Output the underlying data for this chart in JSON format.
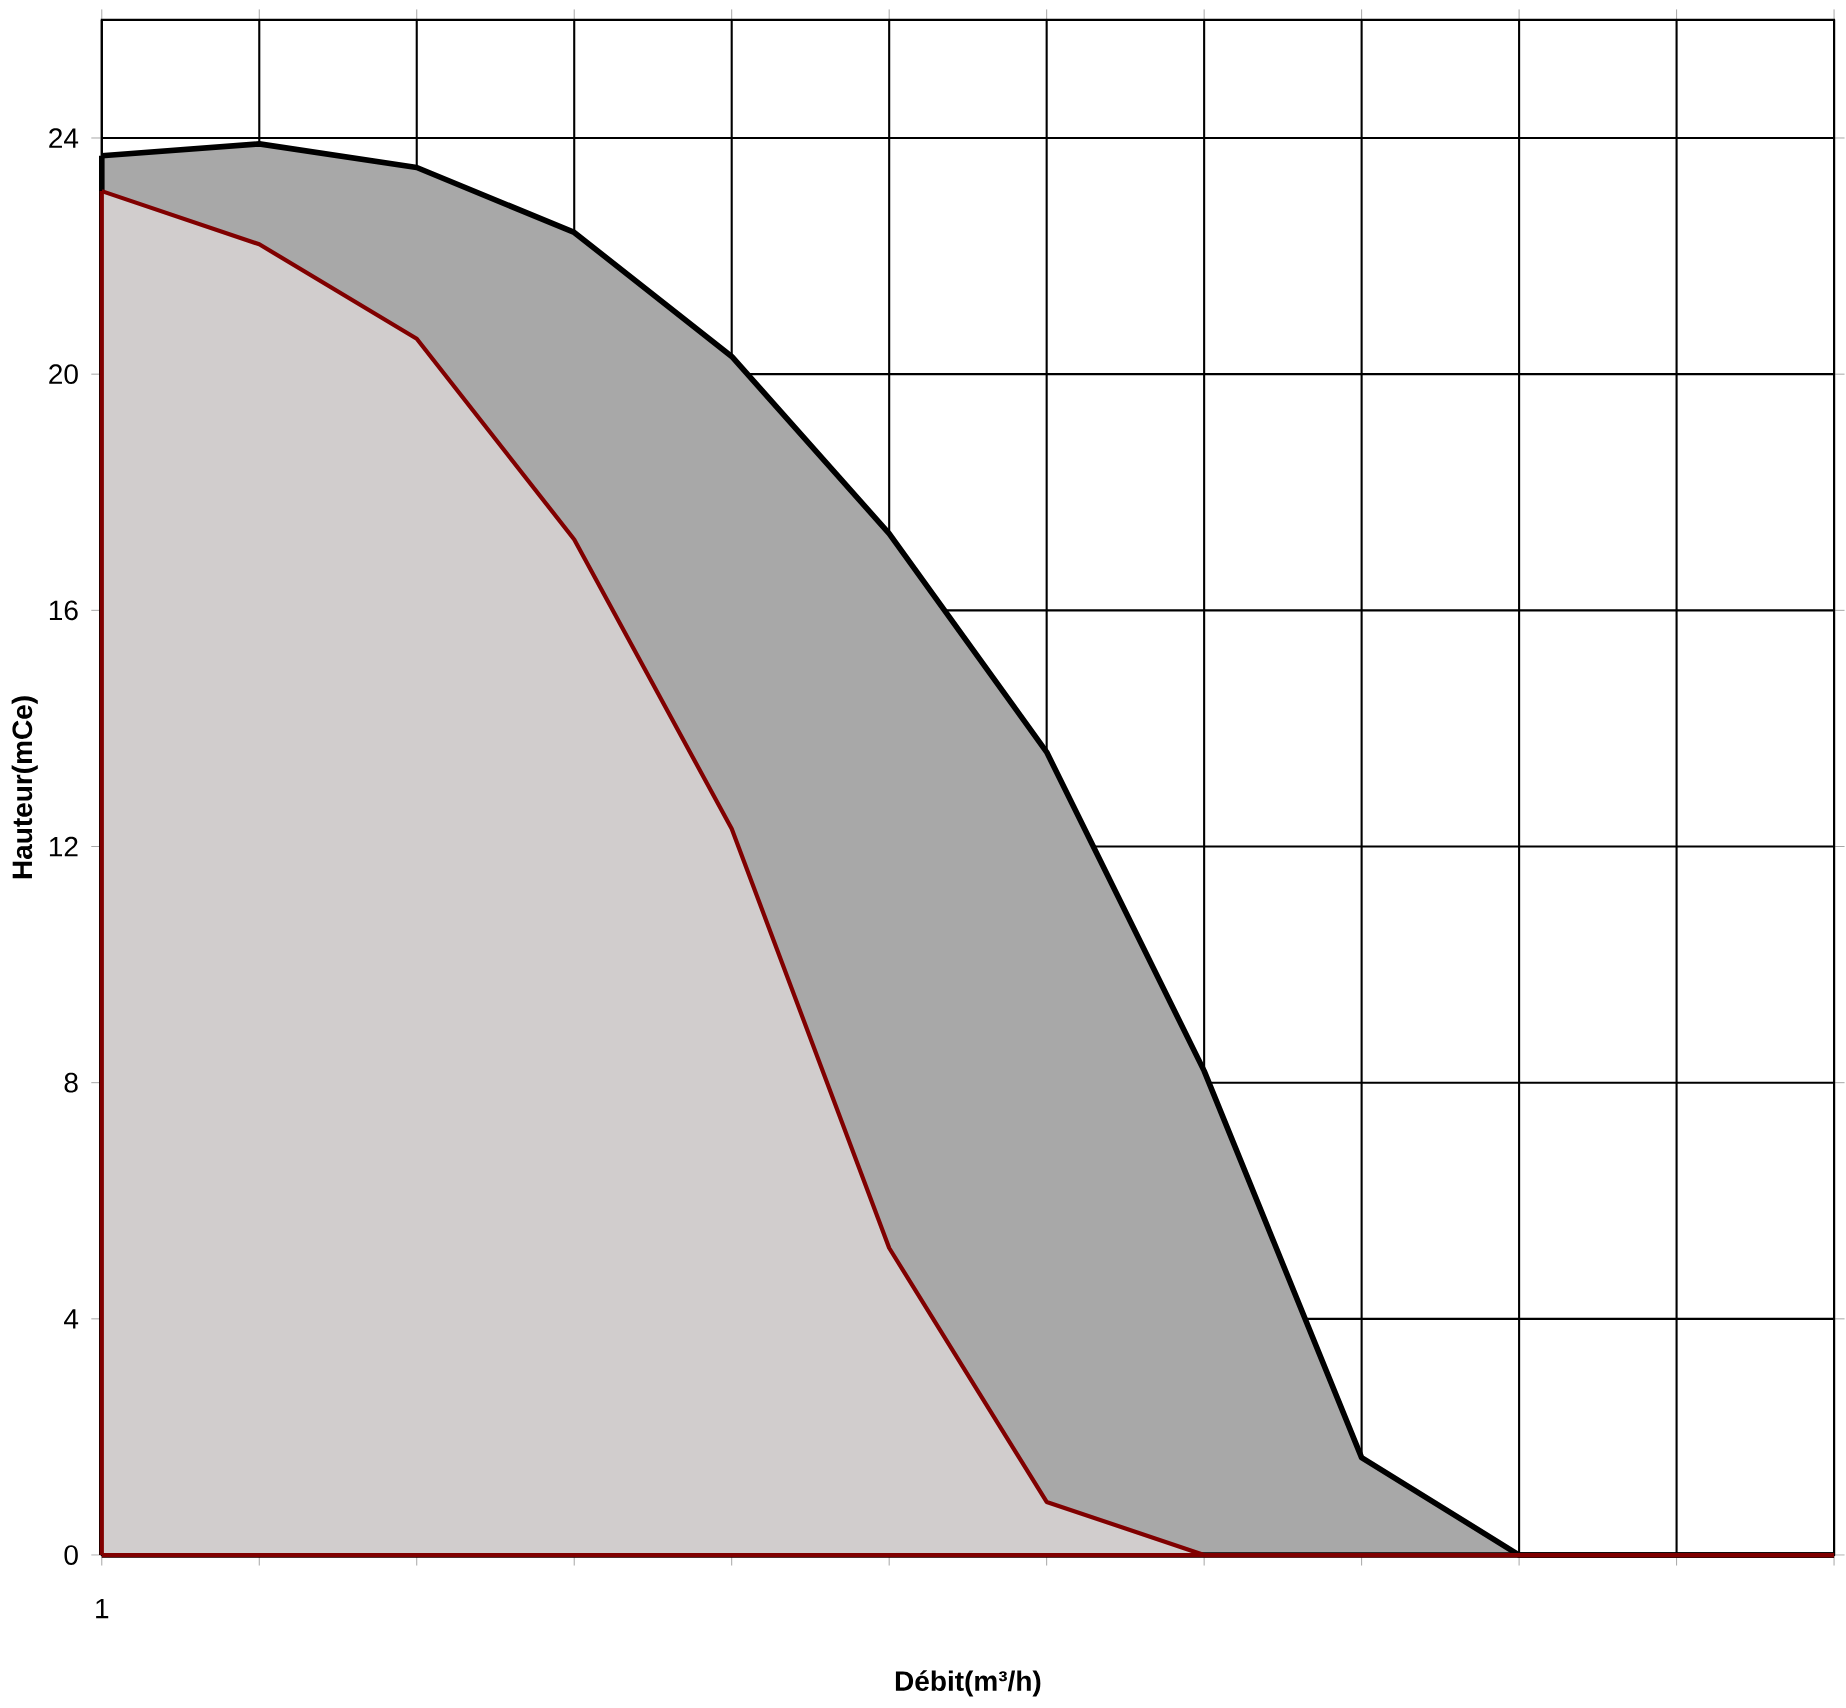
{
  "chart_data": {
    "type": "area",
    "categories": [
      "1",
      null,
      null,
      null,
      null,
      null,
      null,
      null,
      null,
      null,
      null,
      null
    ],
    "xlabel": "Débit(m³/h)",
    "ylabel": "Hauteur(mCe)",
    "series": [
      {
        "color": "#000000",
        "values": [
          23.7,
          23.9,
          23.5,
          22.4,
          20.3,
          17.3,
          13.6,
          8.2,
          1.65,
          0,
          0,
          0
        ]
      },
      {
        "color": "#800000",
        "values": [
          23.1,
          22.2,
          20.6,
          17.2,
          12.3,
          5.2,
          0.9,
          0,
          0,
          0,
          0,
          0
        ]
      }
    ],
    "ylim": [
      0,
      26
    ],
    "yticks": [
      0,
      4,
      8,
      12,
      16,
      20,
      24
    ],
    "grid": true
  }
}
